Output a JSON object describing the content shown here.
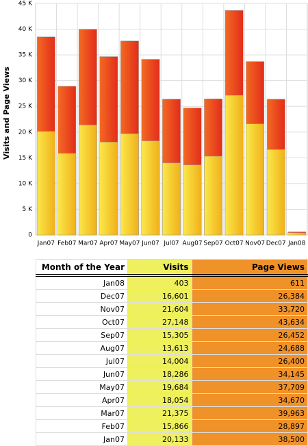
{
  "chart_data": {
    "type": "overlay-bar",
    "ylabel": "Visits and Page Views",
    "categories": [
      "Jan07",
      "Feb07",
      "Mar07",
      "Apr07",
      "May07",
      "Jun07",
      "Jul07",
      "Aug07",
      "Sep07",
      "Oct07",
      "Nov07",
      "Dec07",
      "Jan08"
    ],
    "series": [
      {
        "name": "Page Views",
        "color": "red",
        "values": [
          38500,
          28897,
          39963,
          34670,
          37709,
          34145,
          26400,
          24688,
          26452,
          43634,
          33720,
          26384,
          611
        ]
      },
      {
        "name": "Visits",
        "color": "yellow",
        "values": [
          20133,
          15866,
          21375,
          18054,
          19684,
          18286,
          14004,
          13613,
          15305,
          27148,
          21604,
          16601,
          403
        ]
      }
    ],
    "ylim": [
      0,
      45000
    ],
    "yticks": [
      0,
      {
        "value": 5000,
        "label": "5 K"
      },
      {
        "value": 10000,
        "label": "10 K"
      },
      {
        "value": 15000,
        "label": "15 K"
      },
      {
        "value": 20000,
        "label": "20 K"
      },
      {
        "value": 25000,
        "label": "25 K"
      },
      {
        "value": 30000,
        "label": "30 K"
      },
      {
        "value": 35000,
        "label": "35 K"
      },
      {
        "value": 40000,
        "label": "40 K"
      },
      {
        "value": 45000,
        "label": "45 K"
      }
    ],
    "grid": true
  },
  "table": {
    "header": "Month of the Year",
    "rows": [
      [
        "Jan08",
        "403",
        "611"
      ],
      [
        "Dec07",
        "16,601",
        "26,384"
      ],
      [
        "Nov07",
        "21,604",
        "33,720"
      ],
      [
        "Oct07",
        "27,148",
        "43,634"
      ],
      [
        "Sep07",
        "15,305",
        "26,452"
      ],
      [
        "Aug07",
        "13,613",
        "24,688"
      ],
      [
        "Jul07",
        "14,004",
        "26,400"
      ],
      [
        "Jun07",
        "18,286",
        "34,145"
      ],
      [
        "May07",
        "19,684",
        "37,709"
      ],
      [
        "Apr07",
        "18,054",
        "34,670"
      ],
      [
        "Mar07",
        "21,375",
        "39,963"
      ],
      [
        "Feb07",
        "15,866",
        "28,897"
      ],
      [
        "Jan07",
        "20,133",
        "38,500"
      ]
    ]
  }
}
